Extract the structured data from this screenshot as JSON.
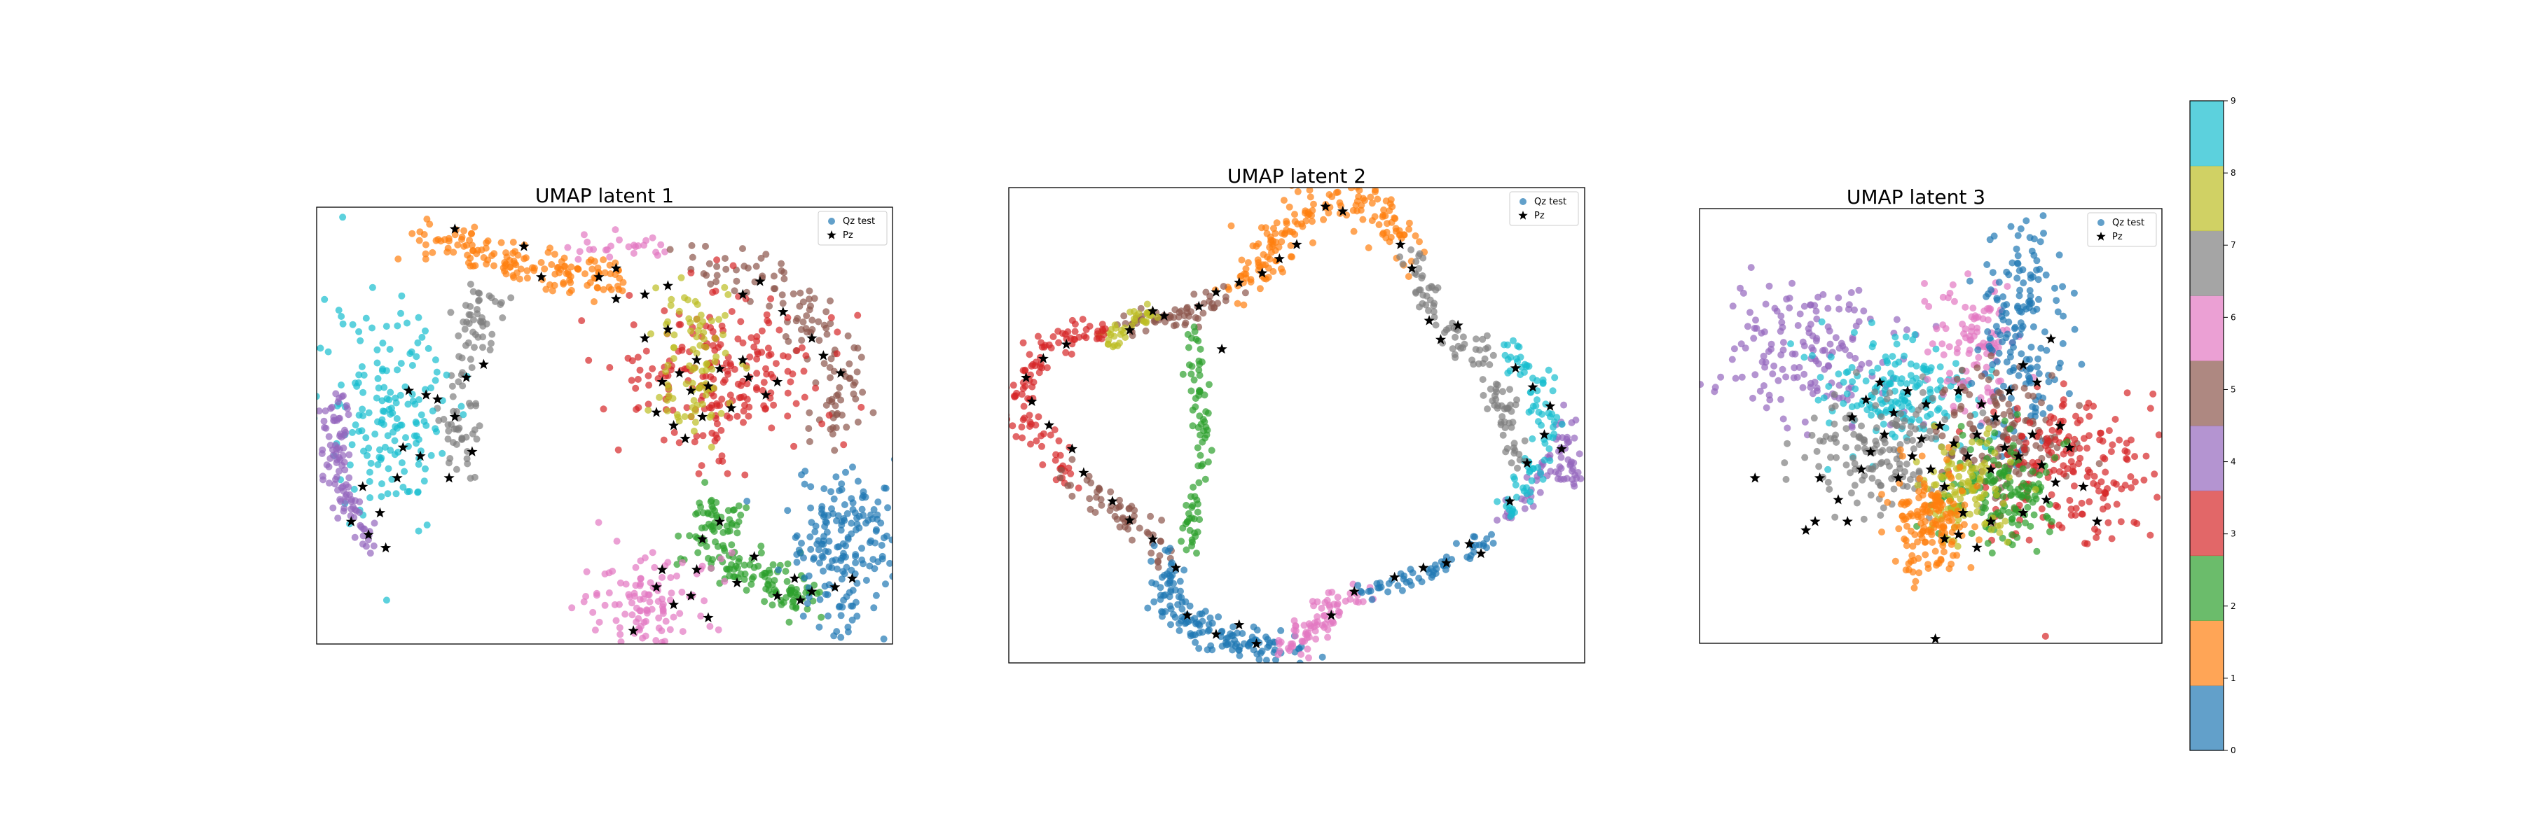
{
  "figure": {
    "palette": [
      "#1f77b4",
      "#ff7f0e",
      "#2ca02c",
      "#d62728",
      "#9467bd",
      "#8c564b",
      "#e377c2",
      "#7f7f7f",
      "#bcbd22",
      "#17becf"
    ],
    "point_alpha": 0.7,
    "star_color": "#000000"
  },
  "chart_data": [
    {
      "type": "scatter",
      "title": "UMAP latent 1",
      "xlim": [
        0,
        100
      ],
      "ylim": [
        0,
        100
      ],
      "grid": false,
      "axes_ticks": false,
      "legend": {
        "placement": "top-right",
        "entries": [
          "Qz test",
          "Pz"
        ]
      },
      "series": [
        {
          "name": "Qz test",
          "marker": "circle",
          "color_by": "class",
          "classes": "0-9"
        },
        {
          "name": "Pz",
          "marker": "star",
          "color": "#000000"
        }
      ],
      "clusters": [
        {
          "class": 1,
          "path": [
            [
              17,
              94
            ],
            [
              25,
              92
            ],
            [
              33,
              88
            ],
            [
              42,
              85
            ],
            [
              53,
              83
            ]
          ],
          "width": 4,
          "n": 150
        },
        {
          "class": 6,
          "path": [
            [
              45,
              91
            ],
            [
              55,
              90
            ],
            [
              60,
              91
            ]
          ],
          "width": 2,
          "n": 25
        },
        {
          "class": 5,
          "path": [
            [
              65,
              88
            ],
            [
              75,
              86
            ],
            [
              85,
              77
            ],
            [
              92,
              62
            ],
            [
              90,
              48
            ]
          ],
          "width": 4,
          "n": 120
        },
        {
          "class": 3,
          "blob": [
            70,
            60,
            8,
            10
          ],
          "n": 220
        },
        {
          "class": 8,
          "blob": [
            65,
            66,
            3.5,
            10
          ],
          "n": 90
        },
        {
          "class": 7,
          "path": [
            [
              28,
              66
            ],
            [
              25,
              75
            ],
            [
              30,
              80
            ],
            [
              25,
              55
            ],
            [
              24,
              40
            ]
          ],
          "width": 3,
          "n": 90
        },
        {
          "class": 9,
          "blob": [
            13,
            52,
            5.5,
            13
          ],
          "n": 170
        },
        {
          "class": 4,
          "path": [
            [
              4,
              57
            ],
            [
              3,
              48
            ],
            [
              3,
              38
            ],
            [
              7,
              28
            ],
            [
              10,
              22
            ]
          ],
          "width": 2,
          "n": 100
        },
        {
          "class": 2,
          "path": [
            [
              70,
              33
            ],
            [
              68,
              23
            ],
            [
              72,
              18
            ],
            [
              80,
              14
            ],
            [
              85,
              10
            ]
          ],
          "width": 4,
          "n": 160
        },
        {
          "class": 0,
          "blob": [
            92,
            22,
            5.5,
            9
          ],
          "n": 200
        },
        {
          "class": 6,
          "blob": [
            57,
            9,
            6,
            6
          ],
          "n": 120
        }
      ],
      "stars": [
        [
          61,
          82
        ],
        [
          57,
          80
        ],
        [
          52,
          86
        ],
        [
          52,
          79
        ],
        [
          49,
          84
        ],
        [
          39,
          84
        ],
        [
          36,
          91
        ],
        [
          24,
          95
        ],
        [
          74,
          80
        ],
        [
          77,
          83
        ],
        [
          81,
          76
        ],
        [
          88,
          66
        ],
        [
          91,
          62
        ],
        [
          86,
          70
        ],
        [
          65,
          58
        ],
        [
          68,
          59
        ],
        [
          72,
          54
        ],
        [
          75,
          61
        ],
        [
          78,
          57
        ],
        [
          80,
          60
        ],
        [
          63,
          62
        ],
        [
          66,
          65
        ],
        [
          60,
          60
        ],
        [
          70,
          63
        ],
        [
          74,
          65
        ],
        [
          57,
          70
        ],
        [
          61,
          72
        ],
        [
          16,
          58
        ],
        [
          19,
          57
        ],
        [
          21,
          56
        ],
        [
          15,
          45
        ],
        [
          18,
          43
        ],
        [
          14,
          38
        ],
        [
          11,
          30
        ],
        [
          12,
          22
        ],
        [
          24,
          52
        ],
        [
          27,
          44
        ],
        [
          23,
          38
        ],
        [
          26,
          61
        ],
        [
          29,
          64
        ],
        [
          8,
          36
        ],
        [
          6,
          28
        ],
        [
          9,
          25
        ],
        [
          80,
          11
        ],
        [
          83,
          15
        ],
        [
          84,
          10
        ],
        [
          86,
          12
        ],
        [
          90,
          13
        ],
        [
          93,
          15
        ],
        [
          59,
          13
        ],
        [
          62,
          9
        ],
        [
          65,
          11
        ],
        [
          55,
          3
        ],
        [
          60,
          17
        ],
        [
          68,
          6
        ],
        [
          73,
          14
        ],
        [
          76,
          20
        ],
        [
          67,
          24
        ],
        [
          70,
          28
        ],
        [
          66,
          17
        ],
        [
          64,
          47
        ],
        [
          62,
          50
        ],
        [
          59,
          53
        ],
        [
          67,
          52
        ]
      ]
    },
    {
      "type": "scatter",
      "title": "UMAP latent 2",
      "xlim": [
        0,
        100
      ],
      "ylim": [
        0,
        100
      ],
      "grid": false,
      "axes_ticks": false,
      "legend": {
        "placement": "top-right",
        "entries": [
          "Qz test",
          "Pz"
        ]
      },
      "series": [
        {
          "name": "Qz test",
          "marker": "circle",
          "color_by": "class",
          "classes": "0-9"
        },
        {
          "name": "Pz",
          "marker": "star",
          "color": "#000000"
        }
      ],
      "clusters": [
        {
          "class": 1,
          "path": [
            [
              40,
              78
            ],
            [
              46,
              88
            ],
            [
              54,
              98
            ],
            [
              62,
              98
            ],
            [
              70,
              86
            ]
          ],
          "width": 3.5,
          "n": 170
        },
        {
          "class": 5,
          "path": [
            [
              38,
              78
            ],
            [
              33,
              74
            ],
            [
              26,
              72
            ],
            [
              19,
              72
            ]
          ],
          "width": 2.5,
          "n": 60
        },
        {
          "class": 8,
          "path": [
            [
              26,
              74
            ],
            [
              21,
              71
            ],
            [
              17,
              68
            ]
          ],
          "width": 2,
          "n": 40
        },
        {
          "class": 3,
          "path": [
            [
              17,
              70
            ],
            [
              9,
              69
            ],
            [
              3,
              62
            ],
            [
              2,
              55
            ],
            [
              5,
              47
            ],
            [
              11,
              39
            ]
          ],
          "width": 2.5,
          "n": 110
        },
        {
          "class": 5,
          "path": [
            [
              11,
              39
            ],
            [
              17,
              33
            ],
            [
              23,
              28
            ],
            [
              27,
              22
            ]
          ],
          "width": 2.5,
          "n": 60
        },
        {
          "class": 2,
          "path": [
            [
              32,
              70
            ],
            [
              33,
              58
            ],
            [
              34,
              46
            ],
            [
              32,
              34
            ],
            [
              31,
              24
            ]
          ],
          "width": 1.5,
          "n": 80
        },
        {
          "class": 0,
          "path": [
            [
              27,
              22
            ],
            [
              28,
              12
            ],
            [
              35,
              6
            ],
            [
              44,
              3
            ],
            [
              50,
              2
            ]
          ],
          "width": 3,
          "n": 150
        },
        {
          "class": 6,
          "path": [
            [
              48,
              2
            ],
            [
              52,
              7
            ],
            [
              56,
              11
            ],
            [
              62,
              15
            ]
          ],
          "width": 2.5,
          "n": 80
        },
        {
          "class": 0,
          "path": [
            [
              62,
              15
            ],
            [
              70,
              18
            ],
            [
              78,
              22
            ],
            [
              84,
              27
            ]
          ],
          "width": 1.5,
          "n": 60
        },
        {
          "class": 4,
          "path": [
            [
              86,
              30
            ],
            [
              92,
              38
            ],
            [
              96,
              46
            ],
            [
              98,
              38
            ],
            [
              96,
              54
            ]
          ],
          "width": 2,
          "n": 70
        },
        {
          "class": 9,
          "path": [
            [
              86,
              30
            ],
            [
              92,
              42
            ],
            [
              93,
              55
            ],
            [
              90,
              62
            ],
            [
              86,
              67
            ]
          ],
          "width": 2.5,
          "n": 90
        },
        {
          "class": 7,
          "path": [
            [
              70,
              86
            ],
            [
              74,
              74
            ],
            [
              80,
              66
            ],
            [
              84,
              62
            ],
            [
              86,
              52
            ],
            [
              88,
              40
            ]
          ],
          "width": 2.5,
          "n": 110
        }
      ],
      "stars": [
        [
          47,
          85
        ],
        [
          50,
          88
        ],
        [
          58,
          95
        ],
        [
          55,
          96
        ],
        [
          68,
          88
        ],
        [
          70,
          83
        ],
        [
          44,
          82
        ],
        [
          40,
          80
        ],
        [
          36,
          78
        ],
        [
          33,
          75
        ],
        [
          27,
          73
        ],
        [
          25,
          74
        ],
        [
          21,
          70
        ],
        [
          10,
          67
        ],
        [
          6,
          64
        ],
        [
          3,
          60
        ],
        [
          4,
          55
        ],
        [
          7,
          50
        ],
        [
          11,
          45
        ],
        [
          13,
          40
        ],
        [
          18,
          34
        ],
        [
          21,
          30
        ],
        [
          25,
          26
        ],
        [
          29,
          20
        ],
        [
          31,
          10
        ],
        [
          36,
          6
        ],
        [
          40,
          8
        ],
        [
          43,
          4
        ],
        [
          56,
          10
        ],
        [
          60,
          15
        ],
        [
          67,
          18
        ],
        [
          72,
          20
        ],
        [
          76,
          21
        ],
        [
          80,
          25
        ],
        [
          82,
          23
        ],
        [
          87,
          34
        ],
        [
          90,
          42
        ],
        [
          93,
          48
        ],
        [
          96,
          45
        ],
        [
          94,
          54
        ],
        [
          91,
          58
        ],
        [
          88,
          62
        ],
        [
          75,
          68
        ],
        [
          78,
          71
        ],
        [
          73,
          72
        ],
        [
          37,
          66
        ]
      ]
    },
    {
      "type": "scatter",
      "title": "UMAP latent 3",
      "xlim": [
        0,
        100
      ],
      "ylim": [
        0,
        100
      ],
      "grid": false,
      "axes_ticks": false,
      "legend": {
        "placement": "top-right",
        "entries": [
          "Qz test",
          "Pz"
        ]
      },
      "series": [
        {
          "name": "Qz test",
          "marker": "circle",
          "color_by": "class",
          "classes": "0-9"
        },
        {
          "name": "Pz",
          "marker": "star",
          "color": "#000000"
        }
      ],
      "clusters": [
        {
          "class": 4,
          "blob": [
            24,
            67,
            9,
            8
          ],
          "n": 160
        },
        {
          "class": 9,
          "blob": [
            43,
            57,
            8,
            6
          ],
          "n": 170
        },
        {
          "class": 7,
          "blob": [
            39,
            44,
            8,
            7
          ],
          "n": 150
        },
        {
          "class": 6,
          "blob": [
            60,
            67,
            5,
            8
          ],
          "n": 110
        },
        {
          "class": 0,
          "blob": [
            70,
            72,
            4.5,
            14
          ],
          "n": 170
        },
        {
          "class": 5,
          "blob": [
            66,
            48,
            7,
            8
          ],
          "n": 130
        },
        {
          "class": 3,
          "blob": [
            80,
            40,
            9,
            8
          ],
          "n": 190
        },
        {
          "class": 2,
          "blob": [
            65,
            35,
            6,
            7
          ],
          "n": 150
        },
        {
          "class": 8,
          "blob": [
            57,
            35,
            5,
            6
          ],
          "n": 110
        },
        {
          "class": 1,
          "blob": [
            50,
            28,
            4,
            6
          ],
          "n": 150
        }
      ],
      "stars": [
        [
          33,
          52
        ],
        [
          36,
          56
        ],
        [
          39,
          60
        ],
        [
          42,
          53
        ],
        [
          45,
          58
        ],
        [
          40,
          48
        ],
        [
          37,
          44
        ],
        [
          35,
          40
        ],
        [
          30,
          33
        ],
        [
          32,
          28
        ],
        [
          23,
          26
        ],
        [
          26,
          38
        ],
        [
          43,
          38
        ],
        [
          46,
          43
        ],
        [
          48,
          47
        ],
        [
          52,
          50
        ],
        [
          55,
          46
        ],
        [
          58,
          43
        ],
        [
          60,
          48
        ],
        [
          63,
          40
        ],
        [
          66,
          45
        ],
        [
          69,
          43
        ],
        [
          72,
          48
        ],
        [
          74,
          41
        ],
        [
          77,
          37
        ],
        [
          70,
          30
        ],
        [
          63,
          28
        ],
        [
          57,
          30
        ],
        [
          56,
          25
        ],
        [
          60,
          22
        ],
        [
          53,
          24
        ],
        [
          64,
          52
        ],
        [
          61,
          55
        ],
        [
          67,
          58
        ],
        [
          70,
          64
        ],
        [
          73,
          60
        ],
        [
          76,
          70
        ],
        [
          78,
          50
        ],
        [
          80,
          45
        ],
        [
          83,
          36
        ],
        [
          86,
          28
        ],
        [
          75,
          33
        ],
        [
          49,
          55
        ],
        [
          56,
          58
        ],
        [
          53,
          36
        ],
        [
          50,
          40
        ],
        [
          12,
          38
        ],
        [
          25,
          28
        ],
        [
          51,
          1
        ]
      ]
    }
  ],
  "colorbar": {
    "ticks": [
      "0",
      "1",
      "2",
      "3",
      "4",
      "5",
      "6",
      "7",
      "8",
      "9"
    ],
    "vmin": 0,
    "vmax": 9
  }
}
